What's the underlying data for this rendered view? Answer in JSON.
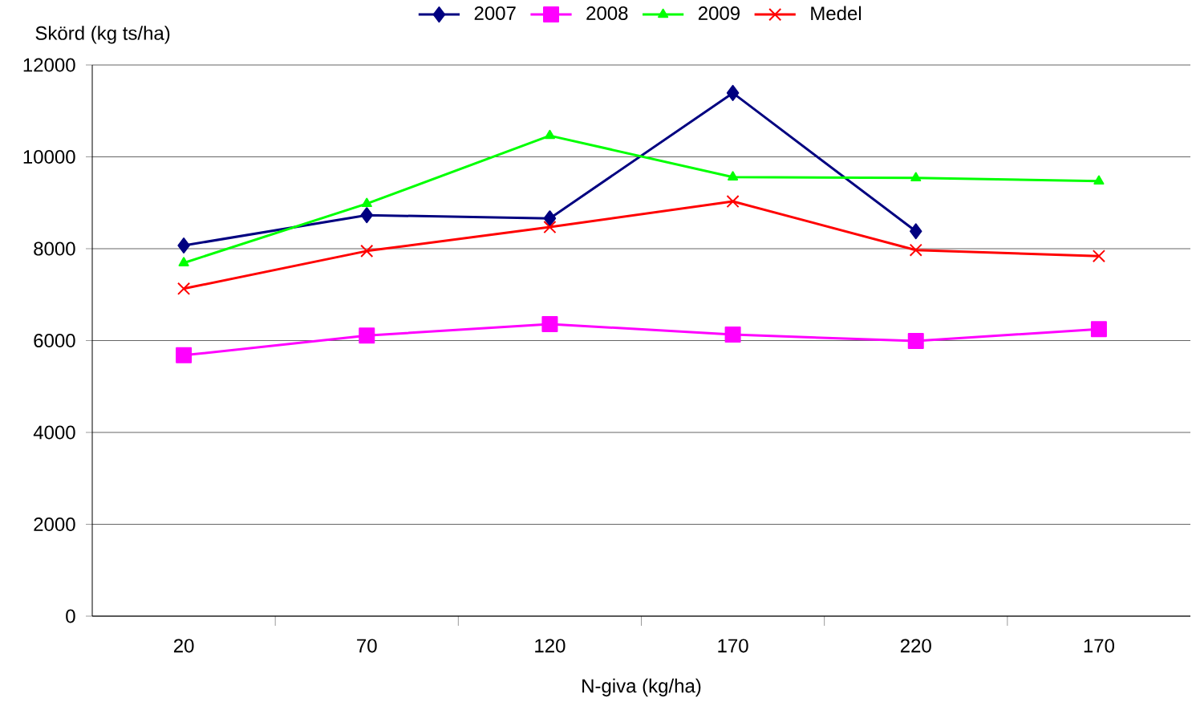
{
  "chart_data": {
    "type": "line",
    "xlabel": "N-giva (kg/ha)",
    "ylabel": "Skörd (kg ts/ha)",
    "categories": [
      "20",
      "70",
      "120",
      "170",
      "220",
      "170"
    ],
    "series": [
      {
        "name": "2007",
        "color": "#000080",
        "marker": "diamond",
        "values": [
          8070,
          8730,
          8660,
          11390,
          8380,
          null
        ]
      },
      {
        "name": "2008",
        "color": "#ff00ff",
        "marker": "square",
        "values": [
          5680,
          6110,
          6360,
          6130,
          5990,
          6250
        ]
      },
      {
        "name": "2009",
        "color": "#00ff00",
        "marker": "triangle",
        "values": [
          7690,
          8980,
          10460,
          9560,
          9540,
          9470
        ]
      },
      {
        "name": "Medel",
        "color": "#ff0000",
        "marker": "cross",
        "values": [
          7130,
          7950,
          8470,
          9030,
          7970,
          7840
        ]
      }
    ],
    "ylim": [
      0,
      12000
    ],
    "yticks": [
      0,
      2000,
      4000,
      6000,
      8000,
      10000,
      12000
    ],
    "grid": "y",
    "legend": "top",
    "line_style": "solid"
  }
}
